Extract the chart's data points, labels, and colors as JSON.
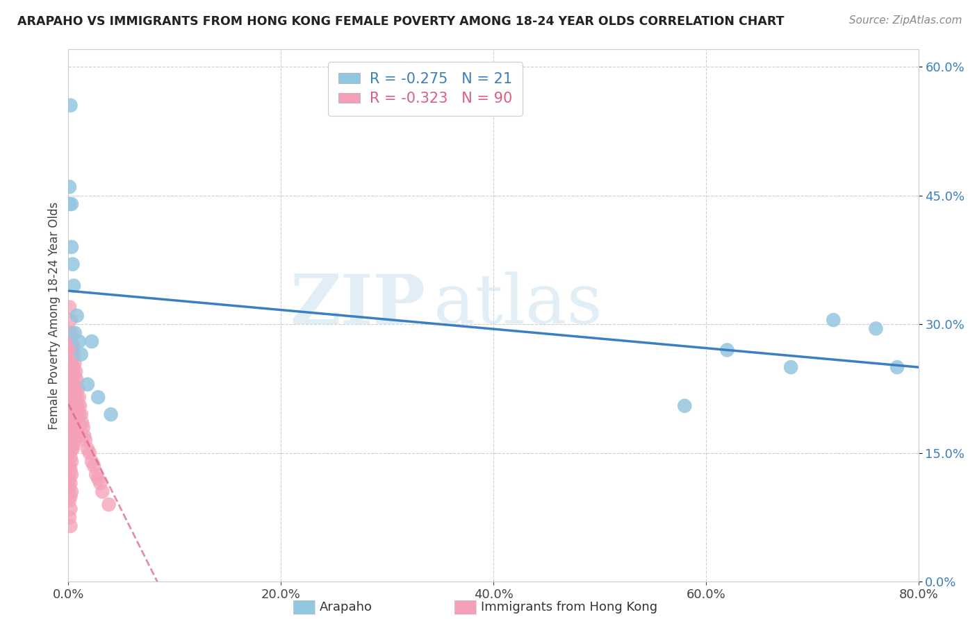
{
  "title": "ARAPAHO VS IMMIGRANTS FROM HONG KONG FEMALE POVERTY AMONG 18-24 YEAR OLDS CORRELATION CHART",
  "source": "Source: ZipAtlas.com",
  "ylabel": "Female Poverty Among 18-24 Year Olds",
  "legend_label_1": "Arapaho",
  "legend_label_2": "Immigrants from Hong Kong",
  "R1": "-0.275",
  "N1": "21",
  "R2": "-0.323",
  "N2": "90",
  "color1": "#93C6E0",
  "color2": "#F4A0B8",
  "line1_color": "#3A7FBF",
  "line2_color": "#D96080",
  "watermark_zip": "ZIP",
  "watermark_atlas": "atlas",
  "xlim": [
    0.0,
    0.8
  ],
  "ylim": [
    0.0,
    0.62
  ],
  "xticks": [
    0.0,
    0.2,
    0.4,
    0.6,
    0.8
  ],
  "yticks": [
    0.0,
    0.15,
    0.3,
    0.45,
    0.6
  ],
  "arapaho_x": [
    0.001,
    0.001,
    0.002,
    0.003,
    0.003,
    0.004,
    0.005,
    0.006,
    0.008,
    0.01,
    0.012,
    0.018,
    0.022,
    0.028,
    0.04,
    0.58,
    0.62,
    0.68,
    0.72,
    0.76,
    0.78
  ],
  "arapaho_y": [
    0.46,
    0.44,
    0.555,
    0.44,
    0.39,
    0.37,
    0.345,
    0.29,
    0.31,
    0.28,
    0.265,
    0.23,
    0.28,
    0.215,
    0.195,
    0.205,
    0.27,
    0.25,
    0.305,
    0.295,
    0.25
  ],
  "hk_x": [
    0.001,
    0.001,
    0.001,
    0.001,
    0.001,
    0.001,
    0.001,
    0.001,
    0.001,
    0.001,
    0.001,
    0.001,
    0.001,
    0.001,
    0.001,
    0.002,
    0.002,
    0.002,
    0.002,
    0.002,
    0.002,
    0.002,
    0.002,
    0.002,
    0.002,
    0.002,
    0.002,
    0.002,
    0.002,
    0.002,
    0.003,
    0.003,
    0.003,
    0.003,
    0.003,
    0.003,
    0.003,
    0.003,
    0.003,
    0.003,
    0.003,
    0.003,
    0.004,
    0.004,
    0.004,
    0.004,
    0.004,
    0.004,
    0.004,
    0.004,
    0.005,
    0.005,
    0.005,
    0.005,
    0.005,
    0.005,
    0.005,
    0.006,
    0.006,
    0.006,
    0.006,
    0.006,
    0.006,
    0.007,
    0.007,
    0.007,
    0.007,
    0.008,
    0.008,
    0.008,
    0.008,
    0.009,
    0.009,
    0.01,
    0.01,
    0.011,
    0.012,
    0.013,
    0.014,
    0.015,
    0.016,
    0.018,
    0.02,
    0.022,
    0.024,
    0.026,
    0.028,
    0.03,
    0.032,
    0.038
  ],
  "hk_y": [
    0.32,
    0.29,
    0.27,
    0.255,
    0.235,
    0.215,
    0.2,
    0.18,
    0.165,
    0.15,
    0.135,
    0.12,
    0.11,
    0.095,
    0.075,
    0.305,
    0.285,
    0.265,
    0.245,
    0.225,
    0.21,
    0.195,
    0.175,
    0.16,
    0.145,
    0.13,
    0.115,
    0.1,
    0.085,
    0.065,
    0.29,
    0.275,
    0.255,
    0.24,
    0.225,
    0.205,
    0.19,
    0.17,
    0.155,
    0.14,
    0.125,
    0.105,
    0.275,
    0.26,
    0.245,
    0.225,
    0.21,
    0.19,
    0.175,
    0.155,
    0.265,
    0.25,
    0.23,
    0.215,
    0.195,
    0.18,
    0.16,
    0.255,
    0.24,
    0.22,
    0.2,
    0.185,
    0.165,
    0.245,
    0.225,
    0.21,
    0.185,
    0.235,
    0.215,
    0.2,
    0.175,
    0.225,
    0.205,
    0.215,
    0.195,
    0.205,
    0.195,
    0.185,
    0.18,
    0.17,
    0.165,
    0.155,
    0.15,
    0.14,
    0.135,
    0.125,
    0.12,
    0.115,
    0.105,
    0.09
  ]
}
